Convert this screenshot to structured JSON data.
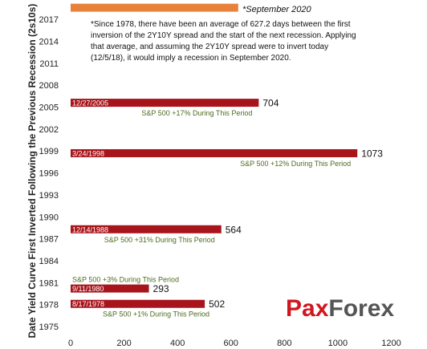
{
  "chart_data": {
    "type": "bar",
    "orientation": "horizontal",
    "ylabel": "Date Yield Curve First Inverted Following the Previous Recession (2s10s)",
    "y_ticks": [
      "2017",
      "2014",
      "2011",
      "2008",
      "2005",
      "2002",
      "1999",
      "1996",
      "1993",
      "1990",
      "1987",
      "1984",
      "1981",
      "1978",
      "1975"
    ],
    "x_ticks": [
      "0",
      "200",
      "400",
      "600",
      "800",
      "1000",
      "1200"
    ],
    "xlim": [
      0,
      1200
    ],
    "ylim": [
      1975,
      2018
    ],
    "grid": false,
    "bars": [
      {
        "year": 2018.6,
        "date_label": "",
        "value": 627.2,
        "value_label": "",
        "color": "#e8823b",
        "note": ""
      },
      {
        "year": 2005.6,
        "date_label": "12/27/2005",
        "value": 704,
        "value_label": "704",
        "color": "#a8141b",
        "note": "S&P 500 +17% During This Period"
      },
      {
        "year": 1998.7,
        "date_label": "3/24/1998",
        "value": 1073,
        "value_label": "1073",
        "color": "#a8141b",
        "note": "S&P 500 +12% During This Period"
      },
      {
        "year": 1988.3,
        "date_label": "12/14/1988",
        "value": 564,
        "value_label": "564",
        "color": "#a8141b",
        "note": "S&P 500 +31% During This Period"
      },
      {
        "year": 1980.2,
        "date_label": "9/11/1980",
        "value": 293,
        "value_label": "293",
        "color": "#a8141b",
        "note": "S&P 500 +3% During This Period"
      },
      {
        "year": 1978.1,
        "date_label": "8/17/1978",
        "value": 502,
        "value_label": "502",
        "color": "#a8141b",
        "note": "S&P 500 +1% During This Period"
      }
    ],
    "annotation": "*September 2020",
    "footnote": [
      "*Since 1978, there have been an average of 627.2 days between the first",
      "inversion of the 2Y10Y spread and the start of the next recession. Applying",
      "that average, and assuming the 2Y10Y spread were to invert today",
      "(12/5/18), it would imply a recession in September  2020."
    ]
  },
  "brand": {
    "name": "PaxForex",
    "part1": "Pax",
    "part2": "Forex",
    "color_red": "#d0161e",
    "color_gray": "#555555"
  }
}
